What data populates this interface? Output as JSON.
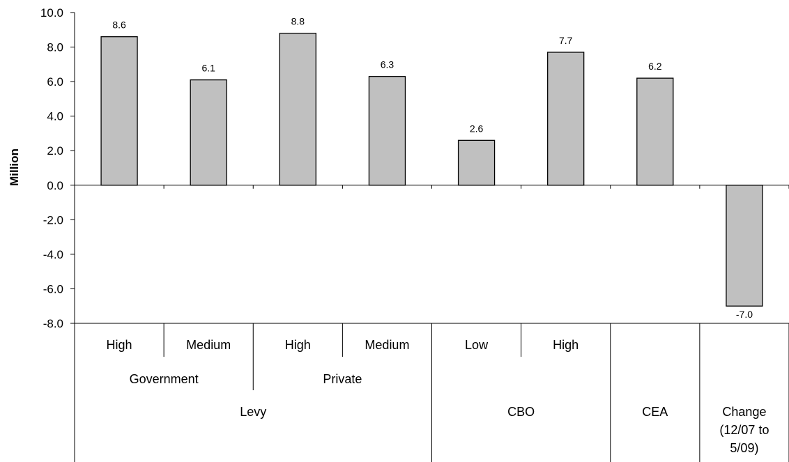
{
  "chart_data": {
    "type": "bar",
    "ylabel": "Million",
    "ylim": [
      -8.0,
      10.0
    ],
    "ytick_step": 2.0,
    "grid": false,
    "legend": "none",
    "bar_color": "#c0c0c0",
    "bar_stroke": "#000000",
    "categories": [
      {
        "label": "High",
        "group1": "Government",
        "group2": "Levy"
      },
      {
        "label": "Medium",
        "group1": "Government",
        "group2": "Levy"
      },
      {
        "label": "High",
        "group1": "Private",
        "group2": "Levy"
      },
      {
        "label": "Medium",
        "group1": "Private",
        "group2": "Levy"
      },
      {
        "label": "Low",
        "group1": "",
        "group2": "CBO"
      },
      {
        "label": "High",
        "group1": "",
        "group2": "CBO"
      },
      {
        "label": "",
        "group1": "",
        "group2": "CEA"
      },
      {
        "label": "",
        "group1": "",
        "group2": "Change (12/07 to 5/09)"
      }
    ],
    "values": [
      8.6,
      6.1,
      8.8,
      6.3,
      2.6,
      7.7,
      6.2,
      -7.0
    ],
    "data_labels": [
      "8.6",
      "6.1",
      "8.8",
      "6.3",
      "2.6",
      "7.7",
      "6.2",
      "-7.0"
    ],
    "level1_groups": [
      "Government",
      "Private"
    ],
    "level2_groups": [
      {
        "label": "Levy",
        "lines": [
          "Levy"
        ]
      },
      {
        "label": "CBO",
        "lines": [
          "CBO"
        ]
      },
      {
        "label": "CEA",
        "lines": [
          "CEA"
        ]
      },
      {
        "label": "Change (12/07 to 5/09)",
        "lines": [
          "Change",
          "(12/07 to",
          "5/09)"
        ]
      }
    ]
  }
}
